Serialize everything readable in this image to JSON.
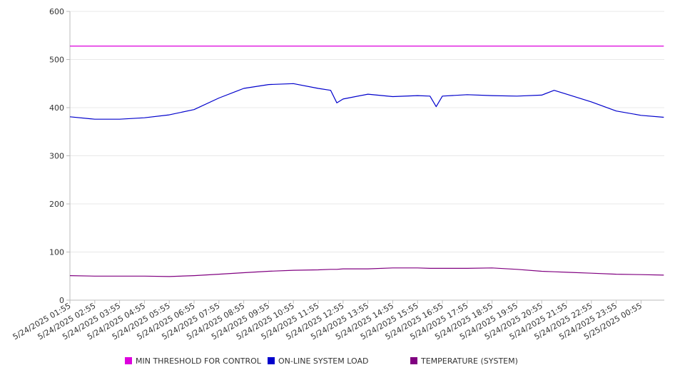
{
  "chart_data": {
    "type": "line",
    "y_ticks": [
      "0",
      "100",
      "200",
      "300",
      "400",
      "500",
      "600"
    ],
    "ylim": [
      0,
      600
    ],
    "x_tick_labels": [
      "5/24/2025 01:55",
      "5/24/2025 02:55",
      "5/24/2025 03:55",
      "5/24/2025 04:55",
      "5/24/2025 05:55",
      "5/24/2025 06:55",
      "5/24/2025 07:55",
      "5/24/2025 08:55",
      "5/24/2025 09:55",
      "5/24/2025 10:55",
      "5/24/2025 11:55",
      "5/24/2025 12:55",
      "5/24/2025 13:55",
      "5/24/2025 14:55",
      "5/24/2025 15:55",
      "5/24/2025 16:55",
      "5/24/2025 17:55",
      "5/24/2025 18:55",
      "5/24/2025 19:55",
      "5/24/2025 20:55",
      "5/24/2025 21:55",
      "5/24/2025 22:55",
      "5/24/2025 23:55",
      "5/25/2025 00:55"
    ],
    "x": [
      "5/24/2025 01:55",
      "5/24/2025 02:55",
      "5/24/2025 03:55",
      "5/24/2025 04:55",
      "5/24/2025 05:55",
      "5/24/2025 06:55",
      "5/24/2025 07:55",
      "5/24/2025 08:55",
      "5/24/2025 09:55",
      "5/24/2025 10:55",
      "5/24/2025 11:55",
      "5/24/2025 12:25",
      "5/24/2025 12:40",
      "5/24/2025 12:55",
      "5/24/2025 13:55",
      "5/24/2025 14:55",
      "5/24/2025 15:55",
      "5/24/2025 16:25",
      "5/24/2025 16:40",
      "5/24/2025 16:55",
      "5/24/2025 17:55",
      "5/24/2025 18:55",
      "5/24/2025 19:55",
      "5/24/2025 20:55",
      "5/24/2025 21:25",
      "5/24/2025 21:55",
      "5/24/2025 22:55",
      "5/24/2025 23:55",
      "5/25/2025 00:55",
      "5/25/2025 01:50"
    ],
    "series": [
      {
        "name": "MIN THRESHOLD FOR CONTROL",
        "color": "#dd00dd",
        "values": [
          528,
          528,
          528,
          528,
          528,
          528,
          528,
          528,
          528,
          528,
          528,
          528,
          528,
          528,
          528,
          528,
          528,
          528,
          528,
          528,
          528,
          528,
          528,
          528,
          528,
          528,
          528,
          528,
          528,
          528
        ]
      },
      {
        "name": "ON-LINE SYSTEM LOAD",
        "color": "#0000cc",
        "values": [
          381,
          376,
          376,
          379,
          385,
          396,
          420,
          440,
          448,
          450,
          440,
          436,
          410,
          418,
          428,
          423,
          425,
          424,
          402,
          424,
          427,
          425,
          424,
          426,
          436,
          428,
          412,
          393,
          384,
          380
        ]
      },
      {
        "name": "TEMPERATURE (SYSTEM)",
        "color": "#800080",
        "values": [
          51,
          50,
          50,
          50,
          49,
          51,
          54,
          57,
          60,
          62,
          63,
          64,
          64,
          65,
          65,
          67,
          67,
          66,
          66,
          66,
          66,
          67,
          64,
          60,
          59,
          58,
          56,
          54,
          53,
          52
        ]
      }
    ],
    "grid": true,
    "legend_position": "bottom"
  }
}
